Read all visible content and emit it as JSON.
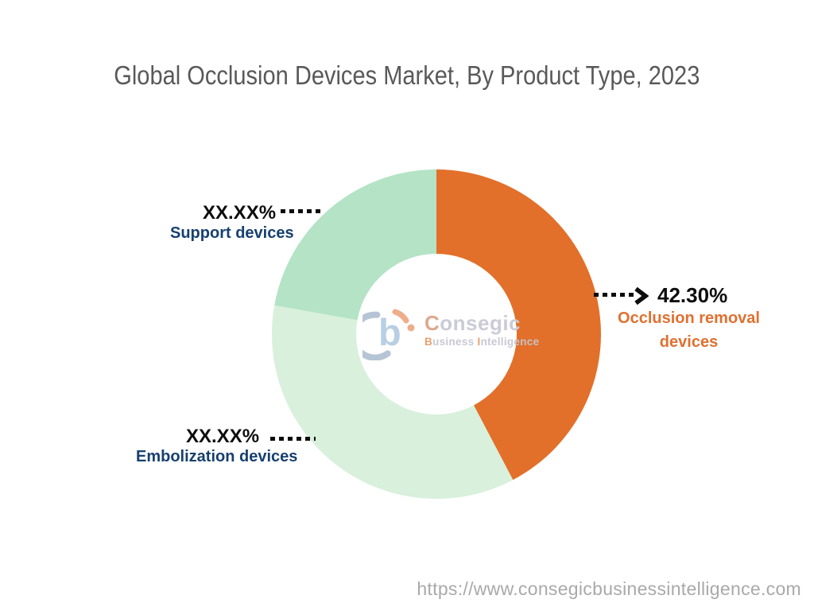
{
  "chart_data": {
    "type": "pie",
    "variant": "donut",
    "title": "Global Occlusion Devices Market, By Product Type, 2023",
    "start_angle_deg": 0,
    "direction": "clockwise",
    "inner_radius_ratio": 0.49,
    "legend": "none (callout labels with dotted leader lines)",
    "segments": [
      {
        "name": "Occlusion removal devices",
        "display_value": "42.30%",
        "value": 42.3,
        "color": "#E2702A",
        "label_color": "#DF7030"
      },
      {
        "name": "Embolization devices",
        "display_value": "XX.XX%",
        "value": 35.5,
        "color": "#D8F0DC",
        "label_color": "#17406F"
      },
      {
        "name": "Support devices",
        "display_value": "XX.XX%",
        "value": 22.2,
        "color": "#B4E3C6",
        "label_color": "#17406F"
      }
    ]
  },
  "watermark": {
    "logo_mark": "consegic-b-logo",
    "line1_lead": "C",
    "line1_rest": "onsegic",
    "line2_lead": "B",
    "line2_mid": "usiness ",
    "line2_lead2": "I",
    "line2_rest": "ntelligence"
  },
  "footer": {
    "url": "https://www.consegicbusinessintelligence.com"
  },
  "colors": {
    "title_gray": "#595959",
    "callout_black": "#0D0D0D",
    "navy_label": "#17406F",
    "orange_label": "#DF7030",
    "footer_gray": "#A9A9A9"
  }
}
